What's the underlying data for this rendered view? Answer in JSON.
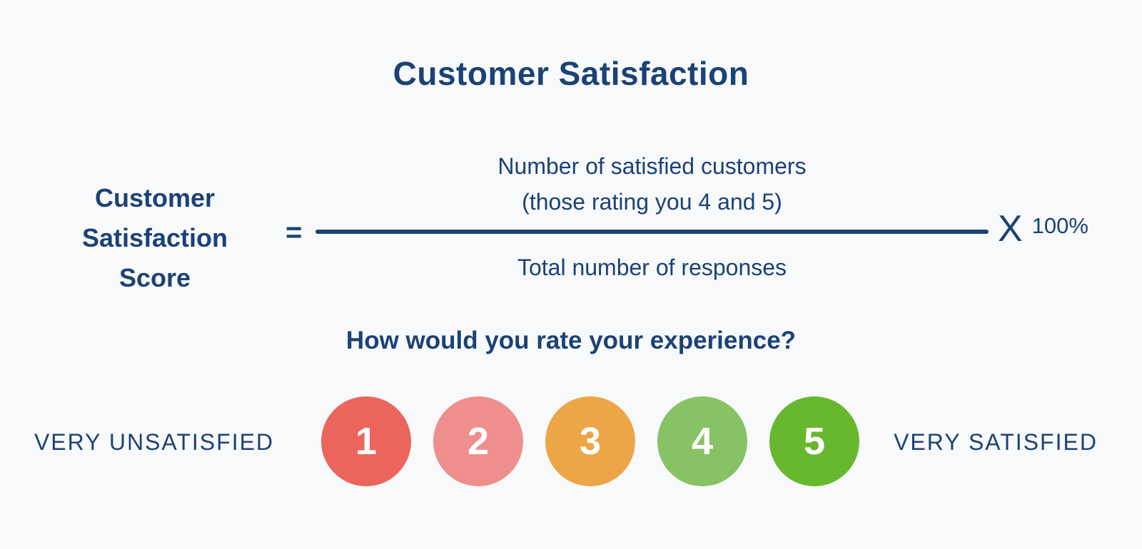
{
  "theme": {
    "background": "#F8F9FB",
    "text": "#1B4277",
    "fraction_bar": "#1B4277",
    "circle_number_color": "#FFFFFF"
  },
  "title": "Customer Satisfaction",
  "formula": {
    "label": "Customer Satisfaction Score",
    "equals": "=",
    "numerator_line1": "Number of satisfied customers",
    "numerator_line2": "(those rating you 4 and 5)",
    "denominator": "Total number of responses",
    "times_symbol": "X",
    "times_value": "100%"
  },
  "survey": {
    "question": "How would you rate your experience?",
    "scale_min_label": "VERY UNSATISFIED",
    "scale_max_label": "VERY SATISFIED",
    "options": [
      {
        "value": "1",
        "color": "#EC655C"
      },
      {
        "value": "2",
        "color": "#EE8F8D"
      },
      {
        "value": "3",
        "color": "#ECA646"
      },
      {
        "value": "4",
        "color": "#87C264"
      },
      {
        "value": "5",
        "color": "#67B82F"
      }
    ]
  }
}
